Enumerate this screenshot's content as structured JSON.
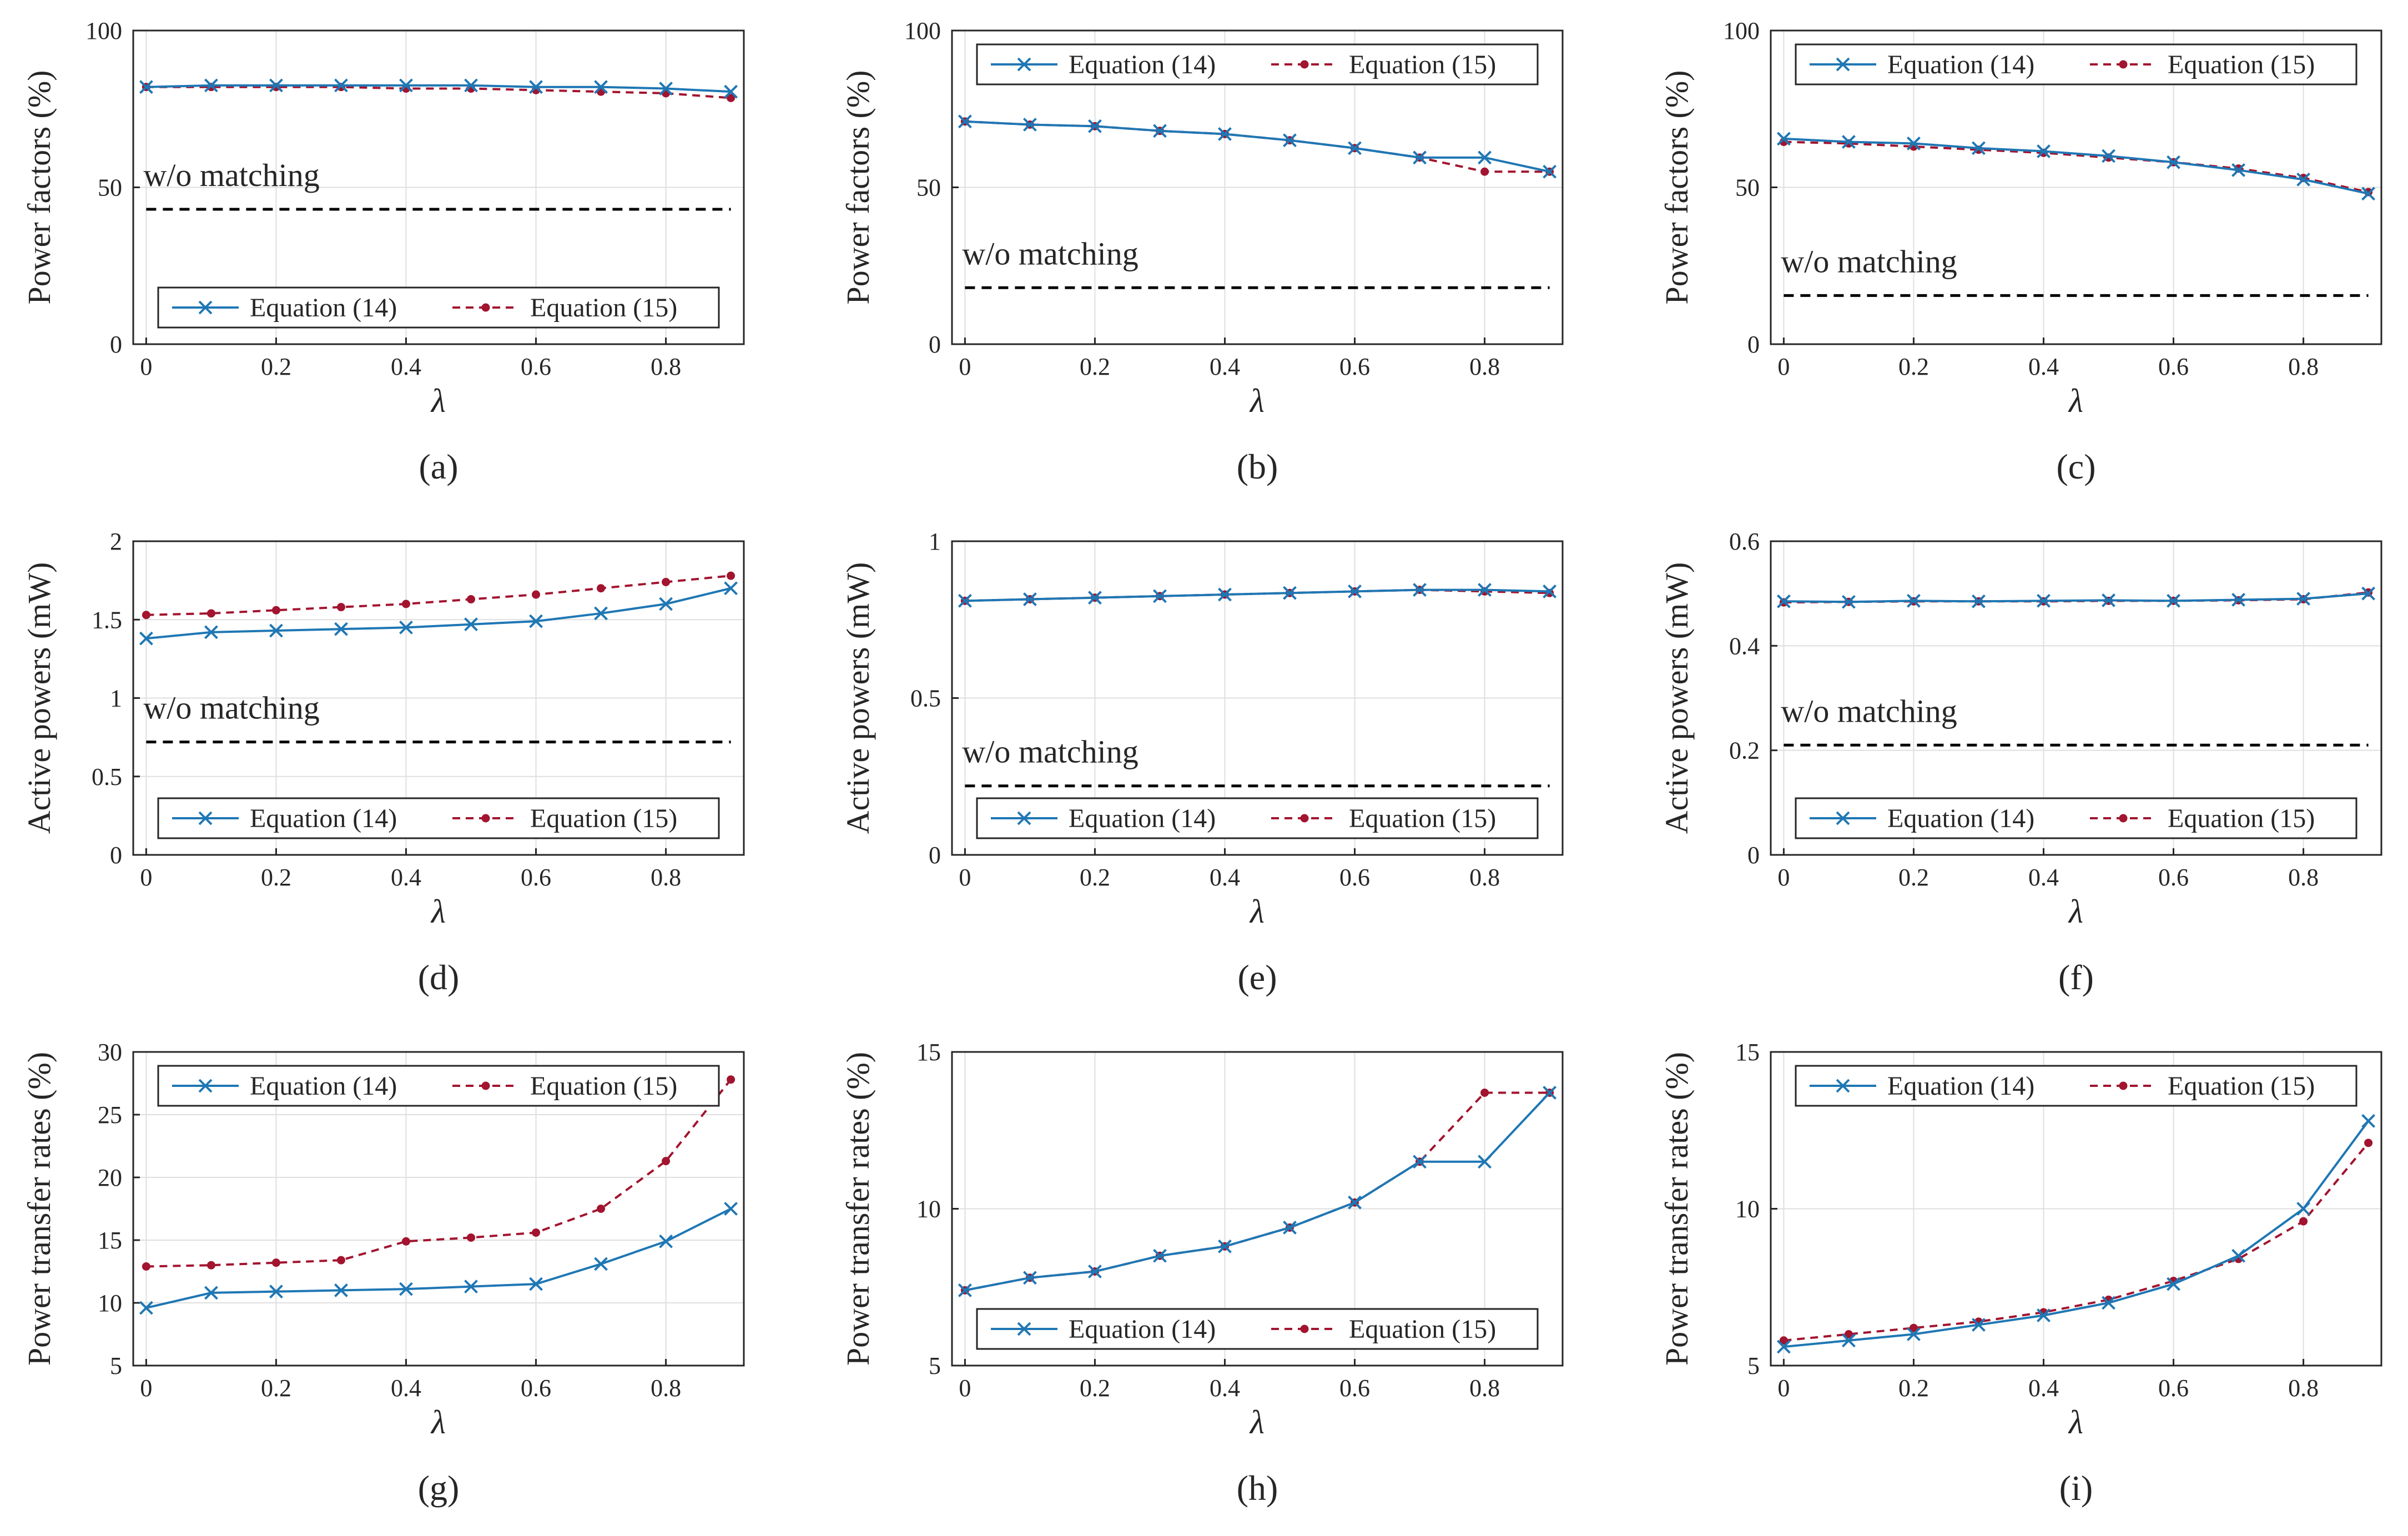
{
  "colors": {
    "eq14": "#1f77b4",
    "eq15": "#a2142f",
    "baseline": "#000000"
  },
  "chart_data": [
    {
      "id": "a",
      "type": "line",
      "caption": "(a)",
      "xlabel": "λ",
      "ylabel": "Power factors (%)",
      "xlim": [
        -0.02,
        0.92
      ],
      "ylim": [
        0,
        100
      ],
      "xticks": [
        0,
        0.2,
        0.4,
        0.6,
        0.8
      ],
      "yticks": [
        0,
        50,
        100
      ],
      "x": [
        0,
        0.1,
        0.2,
        0.3,
        0.4,
        0.5,
        0.6,
        0.7,
        0.8,
        0.9
      ],
      "series": [
        {
          "name": "Equation (14)",
          "values": [
            82,
            82.5,
            82.5,
            82.5,
            82.5,
            82.5,
            82,
            82,
            81.5,
            80.5
          ]
        },
        {
          "name": "Equation (15)",
          "values": [
            82,
            82,
            82,
            82,
            81.5,
            81.5,
            81,
            80.5,
            80,
            78.5
          ]
        }
      ],
      "baseline": {
        "label": "w/o matching",
        "value": 43
      },
      "legend": "bottom"
    },
    {
      "id": "b",
      "type": "line",
      "caption": "(b)",
      "xlabel": "λ",
      "ylabel": "Power factors (%)",
      "xlim": [
        -0.02,
        0.92
      ],
      "ylim": [
        0,
        100
      ],
      "xticks": [
        0,
        0.2,
        0.4,
        0.6,
        0.8
      ],
      "yticks": [
        0,
        50,
        100
      ],
      "x": [
        0,
        0.1,
        0.2,
        0.3,
        0.4,
        0.5,
        0.6,
        0.7,
        0.8,
        0.9
      ],
      "series": [
        {
          "name": "Equation (14)",
          "values": [
            71,
            70,
            69.5,
            68,
            67,
            65,
            62.5,
            59.5,
            59.5,
            55
          ]
        },
        {
          "name": "Equation (15)",
          "values": [
            71,
            70,
            69.5,
            68,
            67,
            65,
            62.5,
            59.5,
            55,
            55
          ]
        }
      ],
      "baseline": {
        "label": "w/o matching",
        "value": 18
      },
      "legend": "top"
    },
    {
      "id": "c",
      "type": "line",
      "caption": "(c)",
      "xlabel": "λ",
      "ylabel": "Power factors (%)",
      "xlim": [
        -0.02,
        0.92
      ],
      "ylim": [
        0,
        100
      ],
      "xticks": [
        0,
        0.2,
        0.4,
        0.6,
        0.8
      ],
      "yticks": [
        0,
        50,
        100
      ],
      "x": [
        0,
        0.1,
        0.2,
        0.3,
        0.4,
        0.5,
        0.6,
        0.7,
        0.8,
        0.9
      ],
      "series": [
        {
          "name": "Equation (14)",
          "values": [
            65.5,
            64.5,
            64,
            62.5,
            61.5,
            60,
            58,
            55.5,
            52.5,
            48
          ]
        },
        {
          "name": "Equation (15)",
          "values": [
            64.5,
            64,
            63,
            62,
            61,
            59.5,
            58,
            56,
            53,
            48.5
          ]
        }
      ],
      "baseline": {
        "label": "w/o matching",
        "value": 15.5
      },
      "legend": "top"
    },
    {
      "id": "d",
      "type": "line",
      "caption": "(d)",
      "xlabel": "λ",
      "ylabel": "Active powers (mW)",
      "xlim": [
        -0.02,
        0.92
      ],
      "ylim": [
        0,
        2
      ],
      "xticks": [
        0,
        0.2,
        0.4,
        0.6,
        0.8
      ],
      "yticks": [
        0,
        0.5,
        1,
        1.5,
        2
      ],
      "x": [
        0,
        0.1,
        0.2,
        0.3,
        0.4,
        0.5,
        0.6,
        0.7,
        0.8,
        0.9
      ],
      "series": [
        {
          "name": "Equation (14)",
          "values": [
            1.38,
            1.42,
            1.43,
            1.44,
            1.45,
            1.47,
            1.49,
            1.54,
            1.6,
            1.7
          ]
        },
        {
          "name": "Equation (15)",
          "values": [
            1.53,
            1.54,
            1.56,
            1.58,
            1.6,
            1.63,
            1.66,
            1.7,
            1.74,
            1.78
          ]
        }
      ],
      "baseline": {
        "label": "w/o matching",
        "value": 0.72
      },
      "legend": "bottom"
    },
    {
      "id": "e",
      "type": "line",
      "caption": "(e)",
      "xlabel": "λ",
      "ylabel": "Active powers (mW)",
      "xlim": [
        -0.02,
        0.92
      ],
      "ylim": [
        0,
        1
      ],
      "xticks": [
        0,
        0.2,
        0.4,
        0.6,
        0.8
      ],
      "yticks": [
        0,
        0.5,
        1
      ],
      "x": [
        0,
        0.1,
        0.2,
        0.3,
        0.4,
        0.5,
        0.6,
        0.7,
        0.8,
        0.9
      ],
      "series": [
        {
          "name": "Equation (14)",
          "values": [
            0.81,
            0.815,
            0.82,
            0.825,
            0.83,
            0.835,
            0.84,
            0.845,
            0.845,
            0.84
          ]
        },
        {
          "name": "Equation (15)",
          "values": [
            0.81,
            0.815,
            0.82,
            0.825,
            0.83,
            0.835,
            0.84,
            0.845,
            0.84,
            0.835
          ]
        }
      ],
      "baseline": {
        "label": "w/o matching",
        "value": 0.22
      },
      "legend": "bottom"
    },
    {
      "id": "f",
      "type": "line",
      "caption": "(f)",
      "xlabel": "λ",
      "ylabel": "Active powers (mW)",
      "xlim": [
        -0.02,
        0.92
      ],
      "ylim": [
        0,
        0.6
      ],
      "xticks": [
        0,
        0.2,
        0.4,
        0.6,
        0.8
      ],
      "yticks": [
        0,
        0.2,
        0.4,
        0.6
      ],
      "x": [
        0,
        0.1,
        0.2,
        0.3,
        0.4,
        0.5,
        0.6,
        0.7,
        0.8,
        0.9
      ],
      "series": [
        {
          "name": "Equation (14)",
          "values": [
            0.485,
            0.484,
            0.486,
            0.485,
            0.486,
            0.487,
            0.486,
            0.488,
            0.49,
            0.5
          ]
        },
        {
          "name": "Equation (15)",
          "values": [
            0.483,
            0.484,
            0.485,
            0.485,
            0.485,
            0.486,
            0.486,
            0.487,
            0.489,
            0.502
          ]
        }
      ],
      "baseline": {
        "label": "w/o matching",
        "value": 0.21
      },
      "legend": "bottom"
    },
    {
      "id": "g",
      "type": "line",
      "caption": "(g)",
      "xlabel": "λ",
      "ylabel": "Power transfer rates (%)",
      "xlim": [
        -0.02,
        0.92
      ],
      "ylim": [
        5,
        30
      ],
      "xticks": [
        0,
        0.2,
        0.4,
        0.6,
        0.8
      ],
      "yticks": [
        5,
        10,
        15,
        20,
        25,
        30
      ],
      "x": [
        0,
        0.1,
        0.2,
        0.3,
        0.4,
        0.5,
        0.6,
        0.7,
        0.8,
        0.9
      ],
      "series": [
        {
          "name": "Equation (14)",
          "values": [
            9.6,
            10.8,
            10.9,
            11.0,
            11.1,
            11.3,
            11.5,
            13.1,
            14.9,
            17.5
          ]
        },
        {
          "name": "Equation (15)",
          "values": [
            12.9,
            13.0,
            13.2,
            13.4,
            14.9,
            15.2,
            15.6,
            17.5,
            21.3,
            27.8
          ]
        }
      ],
      "legend": "top"
    },
    {
      "id": "h",
      "type": "line",
      "caption": "(h)",
      "xlabel": "λ",
      "ylabel": "Power transfer rates (%)",
      "xlim": [
        -0.02,
        0.92
      ],
      "ylim": [
        5,
        15
      ],
      "xticks": [
        0,
        0.2,
        0.4,
        0.6,
        0.8
      ],
      "yticks": [
        5,
        10,
        15
      ],
      "x": [
        0,
        0.1,
        0.2,
        0.3,
        0.4,
        0.5,
        0.6,
        0.7,
        0.8,
        0.9
      ],
      "series": [
        {
          "name": "Equation (14)",
          "values": [
            7.4,
            7.8,
            8.0,
            8.5,
            8.8,
            9.4,
            10.2,
            11.5,
            11.5,
            13.7
          ]
        },
        {
          "name": "Equation (15)",
          "values": [
            7.4,
            7.8,
            8.0,
            8.5,
            8.8,
            9.4,
            10.2,
            11.5,
            13.7,
            13.7
          ]
        }
      ],
      "legend": "bottom"
    },
    {
      "id": "i",
      "type": "line",
      "caption": "(i)",
      "xlabel": "λ",
      "ylabel": "Power transfer rates (%)",
      "xlim": [
        -0.02,
        0.92
      ],
      "ylim": [
        5,
        15
      ],
      "xticks": [
        0,
        0.2,
        0.4,
        0.6,
        0.8
      ],
      "yticks": [
        5,
        10,
        15
      ],
      "x": [
        0,
        0.1,
        0.2,
        0.3,
        0.4,
        0.5,
        0.6,
        0.7,
        0.8,
        0.9
      ],
      "series": [
        {
          "name": "Equation (14)",
          "values": [
            5.6,
            5.8,
            6.0,
            6.3,
            6.6,
            7.0,
            7.6,
            8.5,
            10.0,
            12.8
          ]
        },
        {
          "name": "Equation (15)",
          "values": [
            5.8,
            6.0,
            6.2,
            6.4,
            6.7,
            7.1,
            7.7,
            8.4,
            9.6,
            12.1
          ]
        }
      ],
      "legend": "top"
    }
  ]
}
